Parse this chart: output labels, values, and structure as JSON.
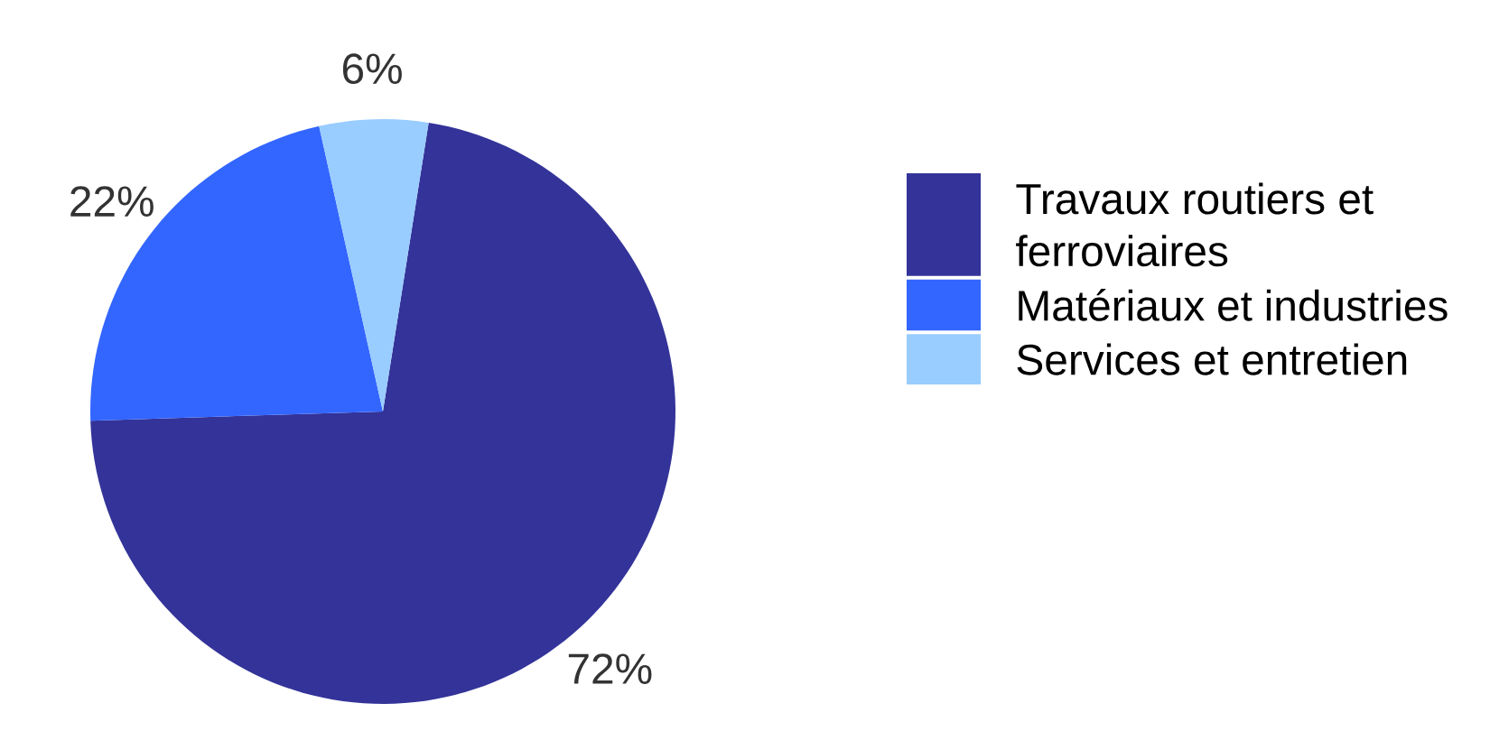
{
  "chart_data": {
    "type": "pie",
    "categories": [
      "Travaux routiers et ferroviaires",
      "Matériaux et industries",
      "Services et entretien"
    ],
    "values": [
      72,
      22,
      6
    ],
    "value_labels": [
      "72%",
      "22%",
      "6%"
    ],
    "colors": [
      "#333399",
      "#3366ff",
      "#99ccff"
    ],
    "legend": "right"
  }
}
